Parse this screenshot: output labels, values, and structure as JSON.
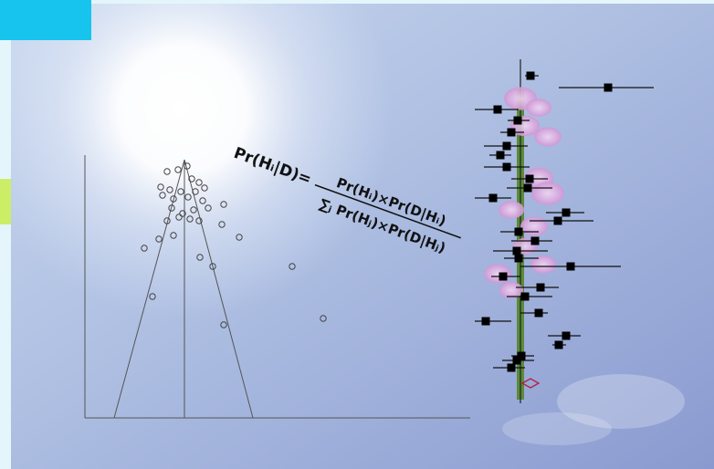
{
  "formula": {
    "lhs": "Pr(Hᵢ|D)=",
    "numerator": "Pr(Hᵢ)×Pr(D|Hᵢ)",
    "denominator": "∑ⱼ Pr(Hⱼ)×Pr(D|Hⱼ)"
  }
}
